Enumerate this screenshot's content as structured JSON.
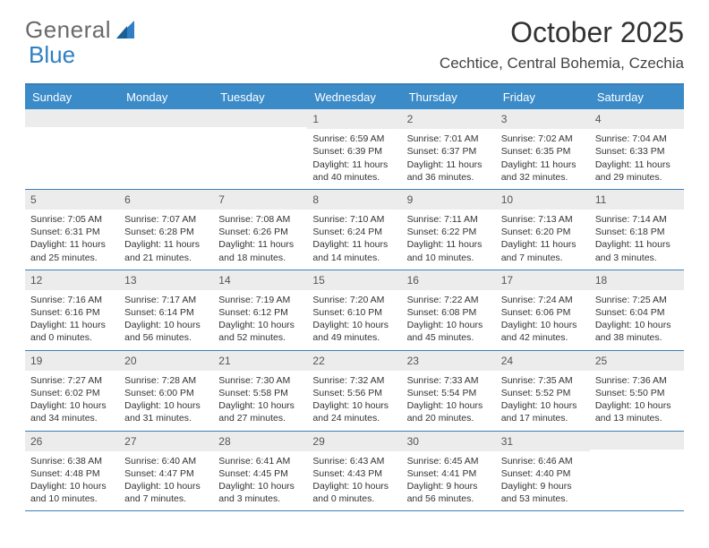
{
  "logo": {
    "word1": "General",
    "word2": "Blue"
  },
  "title": "October 2025",
  "location": "Cechtice, Central Bohemia, Czechia",
  "colors": {
    "header_bg": "#3b8bc9",
    "header_border": "#3b7fb5",
    "daynum_bg": "#ececec",
    "text": "#333333",
    "logo_gray": "#6a6a6a",
    "logo_blue": "#2f7fc2"
  },
  "day_names": [
    "Sunday",
    "Monday",
    "Tuesday",
    "Wednesday",
    "Thursday",
    "Friday",
    "Saturday"
  ],
  "weeks": [
    [
      null,
      null,
      null,
      {
        "n": "1",
        "sr": "6:59 AM",
        "ss": "6:39 PM",
        "dl": "11 hours and 40 minutes."
      },
      {
        "n": "2",
        "sr": "7:01 AM",
        "ss": "6:37 PM",
        "dl": "11 hours and 36 minutes."
      },
      {
        "n": "3",
        "sr": "7:02 AM",
        "ss": "6:35 PM",
        "dl": "11 hours and 32 minutes."
      },
      {
        "n": "4",
        "sr": "7:04 AM",
        "ss": "6:33 PM",
        "dl": "11 hours and 29 minutes."
      }
    ],
    [
      {
        "n": "5",
        "sr": "7:05 AM",
        "ss": "6:31 PM",
        "dl": "11 hours and 25 minutes."
      },
      {
        "n": "6",
        "sr": "7:07 AM",
        "ss": "6:28 PM",
        "dl": "11 hours and 21 minutes."
      },
      {
        "n": "7",
        "sr": "7:08 AM",
        "ss": "6:26 PM",
        "dl": "11 hours and 18 minutes."
      },
      {
        "n": "8",
        "sr": "7:10 AM",
        "ss": "6:24 PM",
        "dl": "11 hours and 14 minutes."
      },
      {
        "n": "9",
        "sr": "7:11 AM",
        "ss": "6:22 PM",
        "dl": "11 hours and 10 minutes."
      },
      {
        "n": "10",
        "sr": "7:13 AM",
        "ss": "6:20 PM",
        "dl": "11 hours and 7 minutes."
      },
      {
        "n": "11",
        "sr": "7:14 AM",
        "ss": "6:18 PM",
        "dl": "11 hours and 3 minutes."
      }
    ],
    [
      {
        "n": "12",
        "sr": "7:16 AM",
        "ss": "6:16 PM",
        "dl": "11 hours and 0 minutes."
      },
      {
        "n": "13",
        "sr": "7:17 AM",
        "ss": "6:14 PM",
        "dl": "10 hours and 56 minutes."
      },
      {
        "n": "14",
        "sr": "7:19 AM",
        "ss": "6:12 PM",
        "dl": "10 hours and 52 minutes."
      },
      {
        "n": "15",
        "sr": "7:20 AM",
        "ss": "6:10 PM",
        "dl": "10 hours and 49 minutes."
      },
      {
        "n": "16",
        "sr": "7:22 AM",
        "ss": "6:08 PM",
        "dl": "10 hours and 45 minutes."
      },
      {
        "n": "17",
        "sr": "7:24 AM",
        "ss": "6:06 PM",
        "dl": "10 hours and 42 minutes."
      },
      {
        "n": "18",
        "sr": "7:25 AM",
        "ss": "6:04 PM",
        "dl": "10 hours and 38 minutes."
      }
    ],
    [
      {
        "n": "19",
        "sr": "7:27 AM",
        "ss": "6:02 PM",
        "dl": "10 hours and 34 minutes."
      },
      {
        "n": "20",
        "sr": "7:28 AM",
        "ss": "6:00 PM",
        "dl": "10 hours and 31 minutes."
      },
      {
        "n": "21",
        "sr": "7:30 AM",
        "ss": "5:58 PM",
        "dl": "10 hours and 27 minutes."
      },
      {
        "n": "22",
        "sr": "7:32 AM",
        "ss": "5:56 PM",
        "dl": "10 hours and 24 minutes."
      },
      {
        "n": "23",
        "sr": "7:33 AM",
        "ss": "5:54 PM",
        "dl": "10 hours and 20 minutes."
      },
      {
        "n": "24",
        "sr": "7:35 AM",
        "ss": "5:52 PM",
        "dl": "10 hours and 17 minutes."
      },
      {
        "n": "25",
        "sr": "7:36 AM",
        "ss": "5:50 PM",
        "dl": "10 hours and 13 minutes."
      }
    ],
    [
      {
        "n": "26",
        "sr": "6:38 AM",
        "ss": "4:48 PM",
        "dl": "10 hours and 10 minutes."
      },
      {
        "n": "27",
        "sr": "6:40 AM",
        "ss": "4:47 PM",
        "dl": "10 hours and 7 minutes."
      },
      {
        "n": "28",
        "sr": "6:41 AM",
        "ss": "4:45 PM",
        "dl": "10 hours and 3 minutes."
      },
      {
        "n": "29",
        "sr": "6:43 AM",
        "ss": "4:43 PM",
        "dl": "10 hours and 0 minutes."
      },
      {
        "n": "30",
        "sr": "6:45 AM",
        "ss": "4:41 PM",
        "dl": "9 hours and 56 minutes."
      },
      {
        "n": "31",
        "sr": "6:46 AM",
        "ss": "4:40 PM",
        "dl": "9 hours and 53 minutes."
      },
      null
    ]
  ],
  "labels": {
    "sunrise": "Sunrise:",
    "sunset": "Sunset:",
    "daylight": "Daylight:"
  }
}
